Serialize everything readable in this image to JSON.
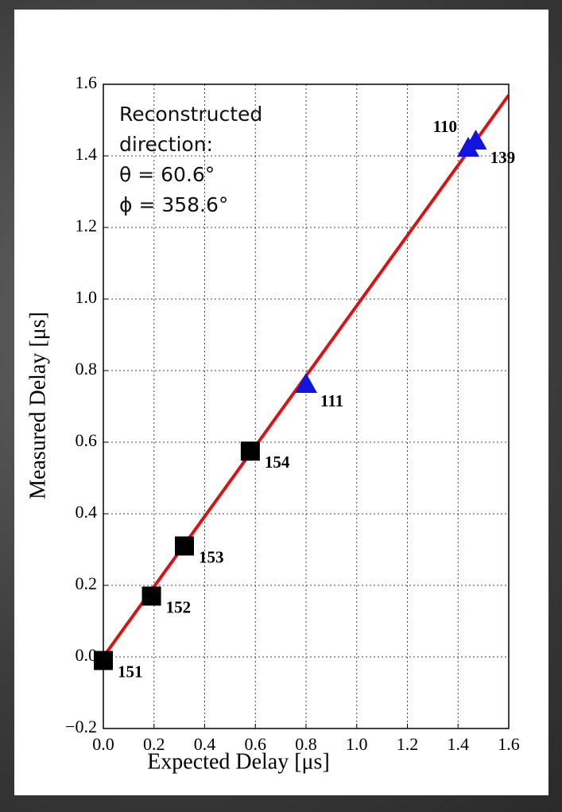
{
  "chart_data": {
    "type": "scatter",
    "xlabel": "Expected Delay [μs]",
    "ylabel": "Measured Delay [μs]",
    "annotation": [
      "Reconstructed",
      "direction:",
      "θ = 60.6°",
      "ϕ = 358.6°"
    ],
    "xlim": [
      0,
      1.6
    ],
    "ylim": [
      -0.2,
      1.6
    ],
    "xticks": [
      {
        "value": 0,
        "label": "0.0"
      },
      0.2,
      0.4,
      0.6,
      0.8,
      {
        "value": 1,
        "label": "1.0"
      },
      1.2,
      1.4,
      1.6
    ],
    "yticks": [
      {
        "value": -0.2,
        "label": "−0.2"
      },
      {
        "value": 0,
        "label": "0.0"
      },
      0.2,
      0.4,
      0.6,
      0.8,
      {
        "value": 1,
        "label": "1.0"
      },
      1.2,
      1.4,
      1.6
    ],
    "grid": true,
    "series": [
      {
        "kind": "line",
        "color": "#dd1111",
        "x": [
          0,
          1.6
        ],
        "values": [
          0,
          1.57
        ]
      },
      {
        "kind": "square",
        "color": "#000000",
        "x": [
          0.0,
          0.19,
          0.32,
          0.58
        ],
        "values": [
          -0.01,
          0.17,
          0.31,
          0.575
        ],
        "point_labels": [
          "151",
          "152",
          "153",
          "154"
        ]
      },
      {
        "kind": "triangle",
        "color": "#1414e0",
        "x": [
          0.8,
          1.44,
          1.47
        ],
        "values": [
          0.76,
          1.42,
          1.44
        ],
        "point_labels": [
          "111",
          "110",
          "139"
        ]
      }
    ]
  }
}
